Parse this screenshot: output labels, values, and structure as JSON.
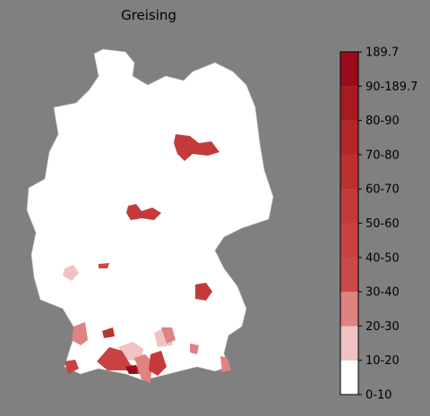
{
  "title": "Greising",
  "legend": {
    "labels": [
      "0-10",
      "10-20",
      "20-30",
      "30-40",
      "40-50",
      "50-60",
      "60-70",
      "70-80",
      "80-90",
      "90-189.7",
      "189.7"
    ],
    "colors": [
      "#ffffff",
      "#f0c2c2",
      "#de8282",
      "#cd4848",
      "#c94141",
      "#c43a3a",
      "#bd3030",
      "#b42628",
      "#a81a22",
      "#9b0b1d"
    ]
  }
}
